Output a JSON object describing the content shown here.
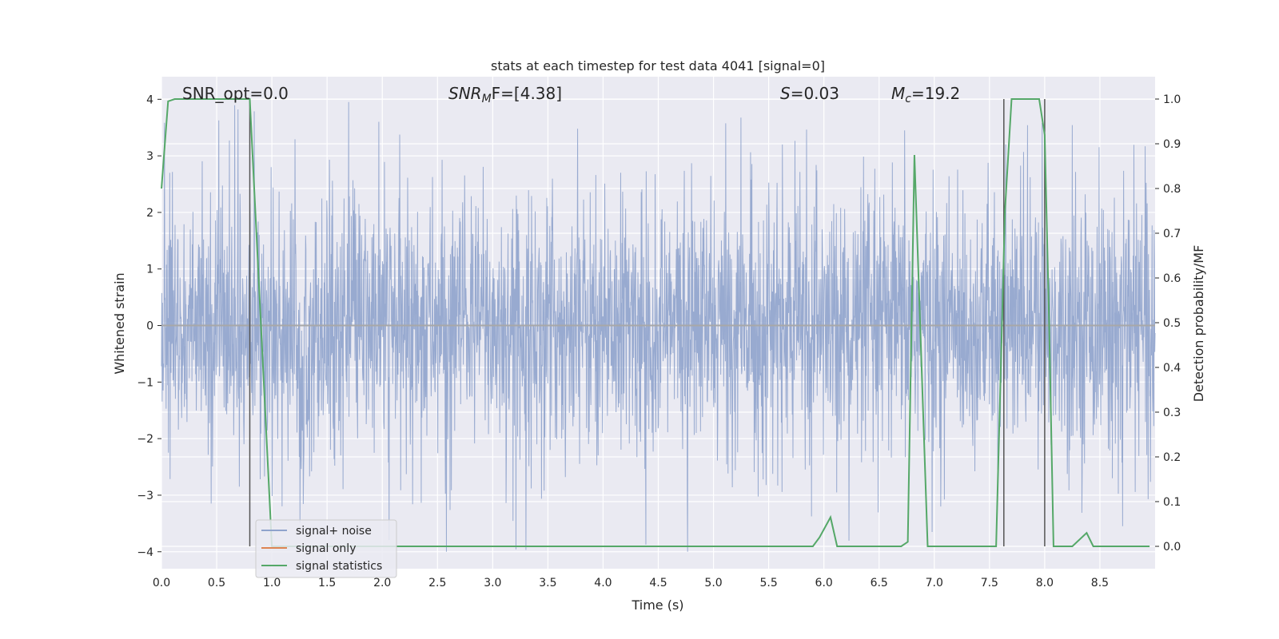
{
  "chart_data": {
    "type": "line",
    "title": "stats at each timestep for test data 4041 [signal=0]",
    "xlabel": "Time (s)",
    "ylabel": "Whitened strain",
    "ylabel_right": "Detection probability/MF",
    "xlim": [
      0,
      9.0
    ],
    "ylim": [
      -4.3,
      4.4
    ],
    "ylim_right": [
      -0.05,
      1.05
    ],
    "x_ticks": [
      "0.0",
      "0.5",
      "1.0",
      "1.5",
      "2.0",
      "2.5",
      "3.0",
      "3.5",
      "4.0",
      "4.5",
      "5.0",
      "5.5",
      "6.0",
      "6.5",
      "7.0",
      "7.5",
      "8.0",
      "8.5"
    ],
    "y_ticks": [
      "4",
      "3",
      "2",
      "1",
      "0",
      "−1",
      "−2",
      "−3",
      "−4"
    ],
    "y_ticks_right": [
      "1.0",
      "0.9",
      "0.8",
      "0.7",
      "0.6",
      "0.5",
      "0.4",
      "0.3",
      "0.2",
      "0.1",
      "0.0"
    ],
    "grid": true,
    "legend_position": "lower-left",
    "annotations": {
      "snr_opt": "SNR_opt=0.0",
      "snr_mf_main": "SNR",
      "snr_mf_sub": "M",
      "snr_mf_rest": "F=[4.38]",
      "s_main": "S",
      "s_rest": "=0.03",
      "mc_main": "M",
      "mc_sub": "c",
      "mc_rest": "=19.2"
    },
    "series": [
      {
        "name": "signal+ noise",
        "color": "#8fa3cc",
        "note": "dense whitened noise, roughly uniform amplitude, values mostly within ±2 with spikes to ±4",
        "t_start": 0.0,
        "t_end": 9.0,
        "amplitude_typical": 2.0,
        "amplitude_max": 4.0
      },
      {
        "name": "signal only",
        "color": "#dd8452",
        "x": [
          0.0,
          9.0
        ],
        "y": [
          0.0,
          0.0
        ]
      },
      {
        "name": "signal statistics",
        "color": "#55a868",
        "axis": "right",
        "x": [
          0.0,
          0.06,
          0.12,
          0.5,
          0.8,
          0.9,
          1.0,
          5.9,
          5.96,
          6.06,
          6.12,
          6.7,
          6.76,
          6.82,
          6.94,
          7.56,
          7.64,
          7.7,
          7.95,
          8.0,
          8.04,
          8.08,
          8.25,
          8.38,
          8.44,
          8.95
        ],
        "y": [
          0.8,
          0.995,
          1.0,
          1.0,
          1.0,
          0.5,
          0.0,
          0.0,
          0.02,
          0.065,
          0.0,
          0.0,
          0.01,
          0.875,
          0.0,
          0.0,
          0.75,
          1.0,
          1.0,
          0.92,
          0.5,
          0.0,
          0.0,
          0.03,
          0.0,
          0.0
        ]
      }
    ],
    "vertical_markers": [
      {
        "x": 0.8,
        "color": "#555555"
      },
      {
        "x": 7.63,
        "color": "#555555"
      },
      {
        "x": 8.0,
        "color": "#555555"
      }
    ]
  }
}
